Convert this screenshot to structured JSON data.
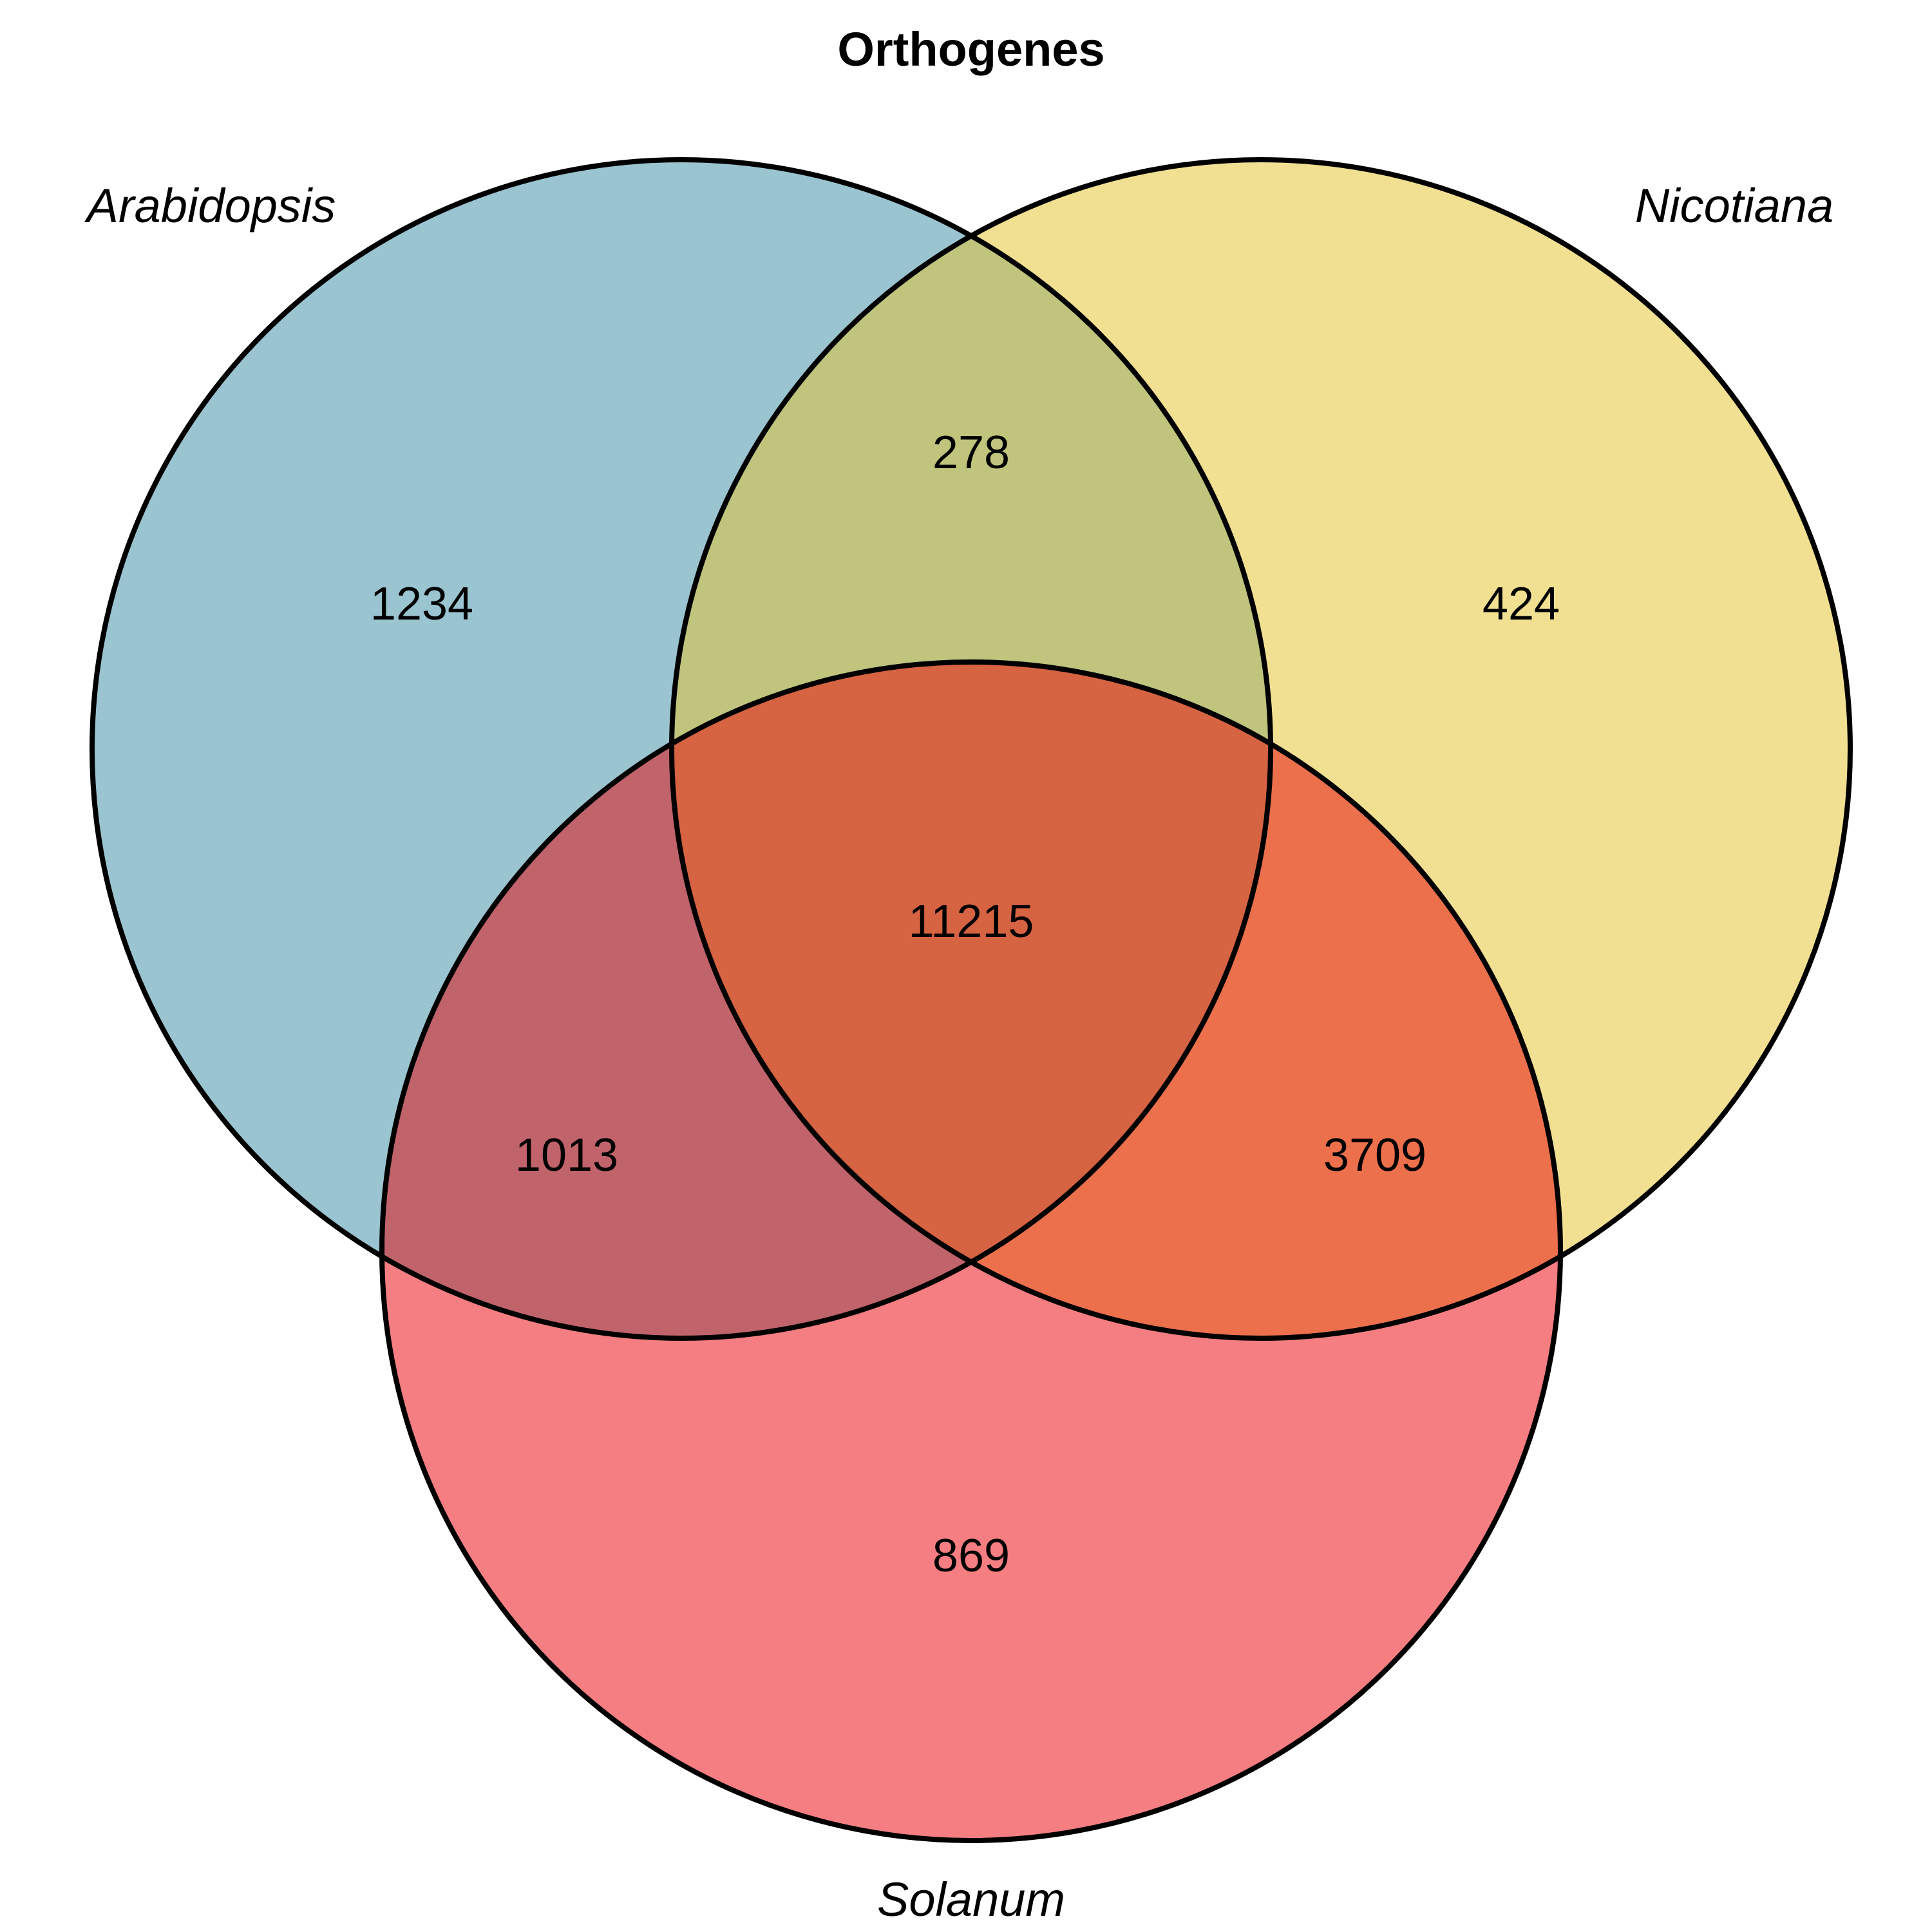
{
  "title": "Orthogenes",
  "sets": [
    {
      "key": "A",
      "label": "Arabidopsis",
      "color": "#9bc4d1"
    },
    {
      "key": "N",
      "label": "Nicotiana",
      "color": "#f1e092"
    },
    {
      "key": "S",
      "label": "Solanum",
      "color": "#f47e82"
    }
  ],
  "regions": {
    "A": "1234",
    "N": "424",
    "S": "869",
    "AN": "278",
    "AS": "1013",
    "NS": "3709",
    "ANS": "11215"
  },
  "region_colors": {
    "A": "#9bc4d1",
    "N": "#f1e092",
    "S": "#f47e82",
    "AN": "#c0c47c",
    "AS": "#c1636b",
    "NS": "#ec704c",
    "ANS": "#d66342"
  }
}
